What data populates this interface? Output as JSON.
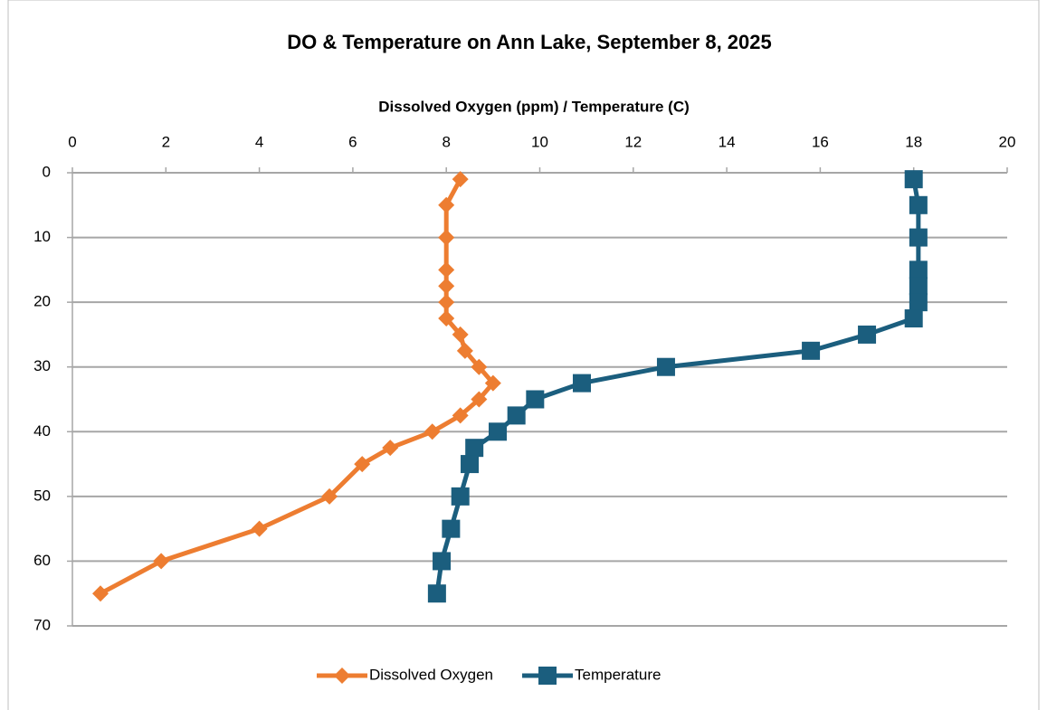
{
  "chart_data": {
    "type": "line",
    "title": "DO & Temperature on Ann Lake, September 8, 2025",
    "x_label": "Dissolved Oxygen (ppm) / Temperature (C)",
    "x_position": "top",
    "y_inverted": true,
    "y": [
      1,
      5,
      10,
      15,
      17.5,
      20,
      22.5,
      25,
      27.5,
      30,
      32.5,
      35,
      37.5,
      40,
      42.5,
      45,
      50,
      55,
      60,
      65
    ],
    "series": [
      {
        "name": "Dissolved Oxygen",
        "color": "#ed7d31",
        "marker": "diamond",
        "values": [
          8.3,
          8.0,
          8.0,
          8.0,
          8.0,
          8.0,
          8.0,
          8.3,
          8.4,
          8.7,
          9.0,
          8.7,
          8.3,
          7.7,
          6.8,
          6.2,
          5.5,
          4.0,
          1.9,
          0.6
        ]
      },
      {
        "name": "Temperature",
        "color": "#1b5e7e",
        "marker": "square",
        "values": [
          18.0,
          18.1,
          18.1,
          18.1,
          18.1,
          18.1,
          18.0,
          17.0,
          15.8,
          12.7,
          10.9,
          9.9,
          9.5,
          9.1,
          8.6,
          8.5,
          8.3,
          8.1,
          7.9,
          7.8
        ]
      }
    ],
    "xlim": [
      0,
      20
    ],
    "xticks": [
      0,
      2,
      4,
      6,
      8,
      10,
      12,
      14,
      16,
      18,
      20
    ],
    "ylim": [
      0,
      70
    ],
    "yticks": [
      0,
      10,
      20,
      30,
      40,
      50,
      60,
      70
    ],
    "grid": true,
    "legend": "bottom"
  }
}
